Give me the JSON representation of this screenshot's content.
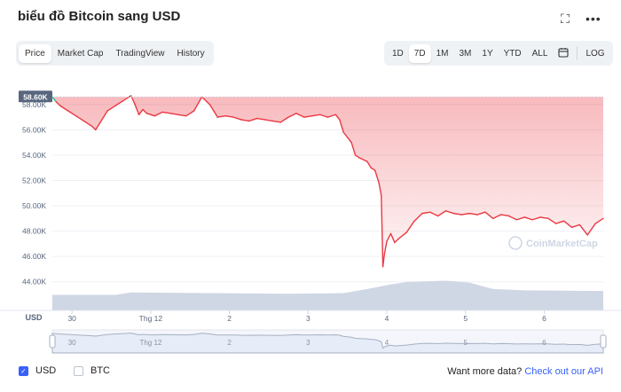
{
  "title": "biểu đồ Bitcoin sang USD",
  "tabs": [
    {
      "label": "Price",
      "active": true
    },
    {
      "label": "Market Cap",
      "active": false
    },
    {
      "label": "TradingView",
      "active": false
    },
    {
      "label": "History",
      "active": false
    }
  ],
  "ranges": [
    "1D",
    "7D",
    "1M",
    "3M",
    "1Y",
    "YTD",
    "ALL"
  ],
  "active_range": "7D",
  "log_label": "LOG",
  "footer": {
    "usd_label": "USD",
    "btc_label": "BTC",
    "more_data_text": "Want more data?",
    "api_link": "Check out our API"
  },
  "watermark": "CoinMarketCap",
  "chart_data": {
    "type": "line",
    "ylabel": "USD",
    "ylim": [
      43000,
      59600
    ],
    "y_ticks": [
      "44.00K",
      "46.00K",
      "48.00K",
      "50.00K",
      "52.00K",
      "54.00K",
      "56.00K",
      "58.00K"
    ],
    "y_tick_values": [
      44000,
      46000,
      48000,
      50000,
      52000,
      54000,
      56000,
      58000
    ],
    "x_ticks": [
      "30",
      "Thg 12",
      "2",
      "3",
      "4",
      "5",
      "6"
    ],
    "x_tick_values": [
      0.25,
      1.25,
      2.25,
      3.25,
      4.25,
      5.25,
      6.25
    ],
    "xlim": [
      0,
      7
    ],
    "current_price_label": "58.60K",
    "current_price_value": 58600,
    "series": [
      {
        "color_up": "#16c784",
        "color_down": "#ea3943",
        "x": [
          0.0,
          0.05,
          0.1,
          0.2,
          0.3,
          0.4,
          0.5,
          0.55,
          0.6,
          0.7,
          0.8,
          0.9,
          1.0,
          1.05,
          1.1,
          1.15,
          1.2,
          1.3,
          1.4,
          1.5,
          1.6,
          1.7,
          1.8,
          1.9,
          2.0,
          2.05,
          2.1,
          2.2,
          2.3,
          2.4,
          2.5,
          2.6,
          2.7,
          2.8,
          2.9,
          3.0,
          3.1,
          3.2,
          3.3,
          3.4,
          3.5,
          3.6,
          3.65,
          3.7,
          3.8,
          3.85,
          3.9,
          4.0,
          4.05,
          4.1,
          4.15,
          4.18,
          4.2,
          4.22,
          4.25,
          4.3,
          4.35,
          4.4,
          4.5,
          4.6,
          4.7,
          4.8,
          4.9,
          5.0,
          5.1,
          5.2,
          5.3,
          5.4,
          5.5,
          5.6,
          5.7,
          5.8,
          5.9,
          6.0,
          6.1,
          6.2,
          6.3,
          6.4,
          6.5,
          6.6,
          6.7,
          6.8,
          6.9,
          7.0
        ],
        "y": [
          58600,
          58200,
          57900,
          57500,
          57100,
          56700,
          56300,
          56000,
          56500,
          57500,
          57900,
          58300,
          58700,
          58000,
          57200,
          57600,
          57300,
          57100,
          57400,
          57300,
          57200,
          57100,
          57500,
          58600,
          58000,
          57500,
          57000,
          57100,
          57000,
          56800,
          56700,
          56900,
          56800,
          56700,
          56600,
          57000,
          57300,
          57000,
          57100,
          57200,
          57000,
          57200,
          56800,
          55800,
          55000,
          54000,
          53800,
          53500,
          53000,
          52800,
          51800,
          50800,
          45200,
          46200,
          47200,
          47800,
          47100,
          47400,
          47900,
          48800,
          49400,
          49500,
          49200,
          49600,
          49400,
          49300,
          49400,
          49300,
          49500,
          49000,
          49300,
          49200,
          48900,
          49100,
          48900,
          49100,
          49000,
          48600,
          48800,
          48300,
          48500,
          47700,
          48600,
          49000
        ]
      }
    ],
    "volume": {
      "x": [
        0.0,
        0.8,
        1.0,
        2.0,
        3.0,
        3.7,
        4.0,
        4.3,
        4.5,
        5.0,
        5.3,
        5.6,
        6.0,
        7.0
      ],
      "values": [
        0.45,
        0.45,
        0.52,
        0.5,
        0.48,
        0.5,
        0.62,
        0.75,
        0.82,
        0.86,
        0.8,
        0.62,
        0.58,
        0.56
      ]
    }
  }
}
